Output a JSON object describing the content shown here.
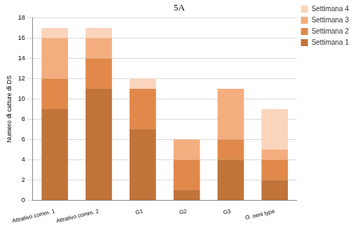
{
  "chart_data": {
    "type": "bar",
    "title": "5A",
    "y_label": "Numero di catture di DS",
    "categories": [
      "Attrativo comm. 1",
      "Attrativo comm. 2",
      "G1",
      "G2",
      "G3",
      "O. oeni type"
    ],
    "series": [
      {
        "name": "Settimana 1",
        "color": "#c0743a",
        "values": [
          9,
          11,
          7,
          1,
          4,
          2
        ]
      },
      {
        "name": "Settimana 2",
        "color": "#e0894a",
        "values": [
          3,
          3,
          4,
          3,
          2,
          2
        ]
      },
      {
        "name": "Settimana 3",
        "color": "#f4ad7f",
        "values": [
          4,
          2,
          0,
          2,
          5,
          1
        ]
      },
      {
        "name": "Settimana 4",
        "color": "#fad4bb",
        "values": [
          1,
          1,
          1,
          0,
          0,
          4
        ]
      }
    ],
    "stacked": true,
    "ylim": [
      0,
      18
    ],
    "yticks": [
      0,
      2,
      4,
      6,
      8,
      10,
      12,
      14,
      16,
      18
    ],
    "grid": true,
    "legend": "right"
  }
}
